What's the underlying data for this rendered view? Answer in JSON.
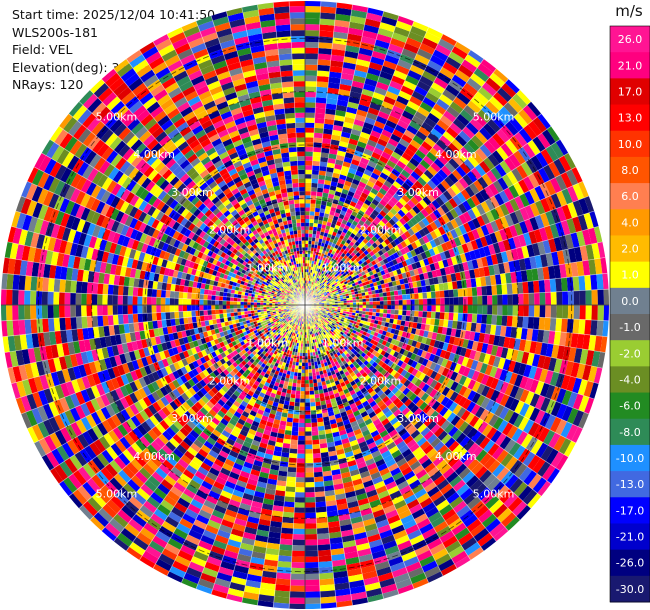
{
  "header": {
    "start_time": "Start time: 2025/12/04 10:41:50",
    "site": "WLS200s-181",
    "field": "Field: VEL",
    "elevation": "Elevation(deg): 35.00",
    "nrays": "NRays: 120"
  },
  "chart_data": {
    "type": "heatmap",
    "subtype": "polar-ppi",
    "n_rays": 120,
    "range_ring_labels": [
      "1.00km",
      "2.00km",
      "3.00km",
      "4.00km",
      "5.00km"
    ],
    "max_range_km": 5.7,
    "grid": true,
    "colorbar": {
      "unit": "m/s",
      "tick_labels": [
        "26.0",
        "21.0",
        "17.0",
        "13.0",
        "10.0",
        "8.0",
        "6.0",
        "4.0",
        "2.0",
        "1.0",
        "0.0",
        "-1.0",
        "-2.0",
        "-4.0",
        "-6.0",
        "-8.0",
        "-10.0",
        "-13.0",
        "-17.0",
        "-21.0",
        "-26.0",
        "-30.0"
      ],
      "colors": [
        "#ff1493",
        "#ff007f",
        "#e00000",
        "#ff0000",
        "#ff3300",
        "#ff5500",
        "#ff7f50",
        "#ff9900",
        "#ffbb00",
        "#ffff00",
        "#708090",
        "#696969",
        "#9acd32",
        "#6b8e23",
        "#228b22",
        "#2e8b57",
        "#1e90ff",
        "#4169e1",
        "#0000ff",
        "#0000cd",
        "#000080",
        "#191970"
      ]
    }
  }
}
